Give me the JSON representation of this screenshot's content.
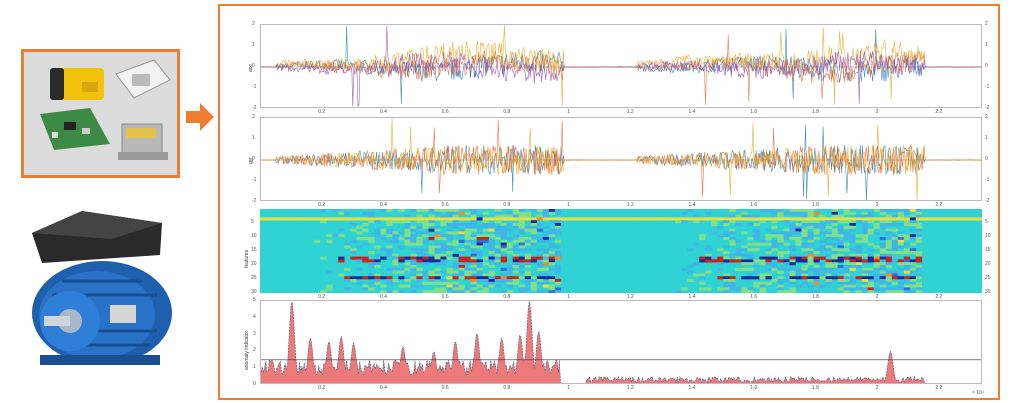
{
  "diagram": {
    "devices_panel": {
      "items": [
        "yellow-sensor-device",
        "white-sensor-device",
        "circuit-board",
        "metal-enclosure-sensor"
      ]
    },
    "motor": {
      "kind": "electric-motor"
    },
    "arrow": {
      "direction": "right",
      "color": "#ee7d31"
    }
  },
  "chart_data": [
    {
      "type": "line",
      "ylabel": "acc",
      "ylim": [
        -2,
        2
      ],
      "yticks": [
        "2",
        "1",
        "0",
        "-1",
        "-2"
      ],
      "x_ticks": [
        "0.2",
        "0.4",
        "0.6",
        "0.8",
        "1",
        "1.2",
        "1.4",
        "1.6",
        "1.8",
        "2",
        "2.2"
      ],
      "series_colors": [
        "#1f77b4",
        "#e6632c",
        "#e8a317",
        "#8c4aa3"
      ]
    },
    {
      "type": "line",
      "ylabel": "gyr",
      "ylim": [
        -2,
        2
      ],
      "yticks": [
        "2",
        "1",
        "0",
        "-1",
        "-2"
      ],
      "x_ticks": [
        "0.2",
        "0.4",
        "0.6",
        "0.8",
        "1",
        "1.2",
        "1.4",
        "1.6",
        "1.8",
        "2",
        "2.2"
      ],
      "series_colors": [
        "#1f77b4",
        "#e6632c",
        "#e8a317"
      ]
    },
    {
      "type": "heatmap",
      "ylabel": "features",
      "yticks": [
        "5",
        "10",
        "15",
        "20",
        "25",
        "30"
      ],
      "x_ticks": [
        "0.2",
        "0.4",
        "0.6",
        "0.8",
        "1",
        "1.2",
        "1.4",
        "1.6",
        "1.8",
        "2",
        "2.2"
      ]
    },
    {
      "type": "area",
      "ylabel": "anomaly indicator",
      "ylim": [
        0,
        5
      ],
      "yticks": [
        "5",
        "4",
        "3",
        "2",
        "1",
        "0"
      ],
      "threshold": 1.5,
      "x_ticks": [
        "0.2",
        "0.4",
        "0.6",
        "0.8",
        "1",
        "1.2",
        "1.4",
        "1.6",
        "1.8",
        "2",
        "2.2"
      ],
      "x_exponent": "× 10⁴",
      "fill_color": "#ec6a6a",
      "line_color": "#3a5f8a"
    }
  ]
}
